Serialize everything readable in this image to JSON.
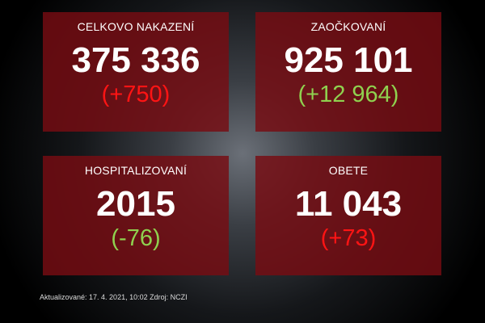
{
  "stats": [
    {
      "label": "CELKOVO NAKAZENÍ",
      "value": "375 336",
      "delta": "(+750)",
      "delta_color": "#ff1414"
    },
    {
      "label": "ZAOČKOVANÍ",
      "value": "925 101",
      "delta": "(+12 964)",
      "delta_color": "#8fd14f"
    },
    {
      "label": "HOSPITALIZOVANÍ",
      "value": "2015",
      "delta": "(-76)",
      "delta_color": "#8fd14f"
    },
    {
      "label": "OBETE",
      "value": "11 043",
      "delta": "(+73)",
      "delta_color": "#ff1414"
    }
  ],
  "footer": "Aktualizované: 17. 4. 2021, 10:02  Zdroj: NCZI"
}
